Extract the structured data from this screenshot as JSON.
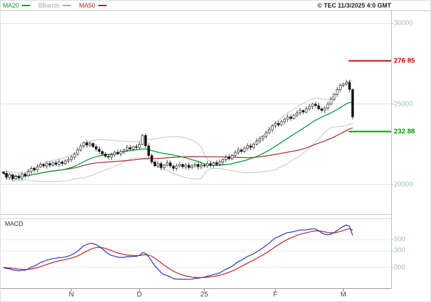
{
  "meta": {
    "copyright": "© TEC 11/3/2025 4:0 GMT"
  },
  "legend": {
    "items": [
      {
        "label": "MA20",
        "color": "#009933"
      },
      {
        "label": "BBands",
        "color": "#aaaaaa"
      },
      {
        "label": "MA50",
        "color": "#aa2222"
      }
    ]
  },
  "price_axis": {
    "color": "#a5b9c9",
    "labels": [
      {
        "text": "30000",
        "value": 30000
      },
      {
        "text": "25000",
        "value": 25000
      },
      {
        "text": "20000",
        "value": 20000
      }
    ]
  },
  "levels": {
    "resistance": {
      "label": "276 85",
      "value": 27685,
      "color": "#cc0000"
    },
    "support": {
      "label": "232 88",
      "value": 23288,
      "color": "#009900"
    }
  },
  "macd_panel": {
    "title": "MACD",
    "labels": [
      {
        "text": "500",
        "value": 500
      },
      {
        "text": "300",
        "value": 300
      },
      {
        "text": "000",
        "value": 0
      }
    ]
  },
  "chart_data": {
    "type": "candlestick",
    "title": "",
    "ylabel": "price",
    "price_range": [
      18200,
      30780
    ],
    "price_gridlines": [
      20000,
      25000,
      30000
    ],
    "macd_range": [
      -350,
      850
    ],
    "x_axis": {
      "labels": [
        {
          "text": "N",
          "index": 22
        },
        {
          "text": "D",
          "index": 44
        },
        {
          "text": "25",
          "index": 65
        },
        {
          "text": "F",
          "index": 88
        },
        {
          "text": "M",
          "index": 110
        }
      ]
    },
    "closes": [
      20700,
      20450,
      20600,
      20350,
      20500,
      20400,
      20650,
      20550,
      20800,
      21000,
      20900,
      21100,
      21250,
      21150,
      21300,
      21200,
      21350,
      21250,
      21400,
      21300,
      21450,
      21550,
      21700,
      21900,
      22150,
      22400,
      22600,
      22450,
      22550,
      22350,
      22200,
      22050,
      21900,
      21750,
      21700,
      21850,
      22000,
      21900,
      22050,
      22150,
      22300,
      22200,
      22350,
      22300,
      22500,
      23050,
      22400,
      21800,
      21400,
      21150,
      21300,
      21050,
      21200,
      21350,
      21150,
      21000,
      21150,
      21250,
      21100,
      21200,
      21050,
      21150,
      21250,
      21100,
      21200,
      21150,
      21300,
      21200,
      21350,
      21250,
      21400,
      21550,
      21700,
      21600,
      21800,
      22000,
      22150,
      22050,
      22250,
      22400,
      22300,
      22500,
      22700,
      22850,
      23000,
      23200,
      23400,
      23650,
      23800,
      23700,
      23900,
      24050,
      24200,
      24100,
      24300,
      24450,
      24600,
      24500,
      24700,
      24850,
      25000,
      24900,
      24700,
      24600,
      24750,
      25000,
      25300,
      25600,
      25900,
      26150,
      26250,
      26350,
      25900,
      24200
    ],
    "indicators": {
      "ma20": {
        "type": "sma",
        "period": 20,
        "color": "#009933"
      },
      "ma50": {
        "type": "sma",
        "period": 50,
        "color": "#aa3333"
      },
      "bbands": {
        "period": 20,
        "stddev": 2,
        "color": "#c4c4c4"
      },
      "macd": {
        "fast": 12,
        "slow": 26,
        "signal": 9,
        "macd_color": "#2233bb",
        "signal_color": "#bb2222"
      }
    }
  }
}
